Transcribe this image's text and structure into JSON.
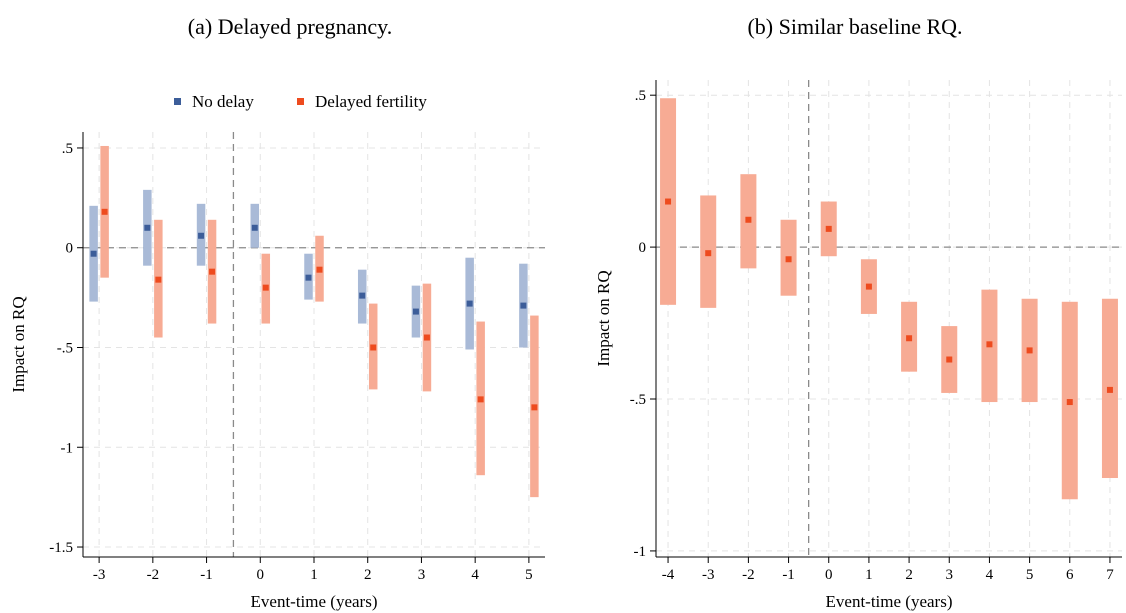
{
  "chart_data": [
    {
      "type": "errorbar",
      "title": "(a) Delayed pregnancy.",
      "xlabel": "Event-time (years)",
      "ylabel": "Impact on RQ",
      "ylim": [
        -1.55,
        0.58
      ],
      "xlim": [
        -3.3,
        5.3
      ],
      "yticks": [
        0.5,
        0,
        -0.5,
        -1,
        -1.5
      ],
      "yticklabels": [
        ".5",
        "0",
        "-.5",
        "-1",
        "-1.5"
      ],
      "xticks": [
        -3,
        -2,
        -1,
        0,
        1,
        2,
        3,
        4,
        5
      ],
      "xticklabels": [
        "-3",
        "-2",
        "-1",
        "0",
        "1",
        "2",
        "3",
        "4",
        "5"
      ],
      "reference_lines": {
        "y": 0,
        "x": -0.5
      },
      "grid": true,
      "legend": "top-center",
      "series": [
        {
          "name": "No delay",
          "color": "#3c5d99",
          "band_color": "#a9bad7",
          "x": [
            -3,
            -2,
            -1,
            0,
            1,
            2,
            3,
            4,
            5
          ],
          "values": [
            -0.03,
            0.1,
            0.06,
            0.1,
            -0.15,
            -0.24,
            -0.32,
            -0.28,
            -0.29
          ],
          "ci_low": [
            -0.27,
            -0.09,
            -0.09,
            0.0,
            -0.26,
            -0.38,
            -0.45,
            -0.51,
            -0.5
          ],
          "ci_high": [
            0.21,
            0.29,
            0.22,
            0.22,
            -0.03,
            -0.11,
            -0.19,
            -0.05,
            -0.08
          ]
        },
        {
          "name": "Delayed fertility",
          "color": "#ee4b1e",
          "band_color": "#f7ab94",
          "x": [
            -3,
            -2,
            -1,
            0,
            1,
            2,
            3,
            4,
            5
          ],
          "values": [
            0.18,
            -0.16,
            -0.12,
            -0.2,
            -0.11,
            -0.5,
            -0.45,
            -0.76,
            -0.8
          ],
          "ci_low": [
            -0.15,
            -0.45,
            -0.38,
            -0.38,
            -0.27,
            -0.71,
            -0.72,
            -1.14,
            -1.25
          ],
          "ci_high": [
            0.51,
            0.14,
            0.14,
            -0.03,
            0.06,
            -0.28,
            -0.18,
            -0.37,
            -0.34
          ]
        }
      ]
    },
    {
      "type": "errorbar",
      "title": "(b) Similar baseline RQ.",
      "xlabel": "Event-time (years)",
      "ylabel": "Impact on RQ",
      "ylim": [
        -1.02,
        0.55
      ],
      "xlim": [
        -4.3,
        7.3
      ],
      "yticks": [
        0.5,
        0,
        -0.5,
        -1
      ],
      "yticklabels": [
        ".5",
        "0",
        "-.5",
        "-1"
      ],
      "xticks": [
        -4,
        -3,
        -2,
        -1,
        0,
        1,
        2,
        3,
        4,
        5,
        6,
        7
      ],
      "xticklabels": [
        "-4",
        "-3",
        "-2",
        "-1",
        "0",
        "1",
        "2",
        "3",
        "4",
        "5",
        "6",
        "7"
      ],
      "reference_lines": {
        "y": 0,
        "x": -0.5
      },
      "grid": true,
      "series": [
        {
          "color": "#ee4b1e",
          "band_color": "#f7ab94",
          "x": [
            -4,
            -3,
            -2,
            -1,
            0,
            1,
            2,
            3,
            4,
            5,
            6,
            7
          ],
          "values": [
            0.15,
            -0.02,
            0.09,
            -0.04,
            0.06,
            -0.13,
            -0.3,
            -0.37,
            -0.32,
            -0.34,
            -0.51,
            -0.47
          ],
          "ci_low": [
            -0.19,
            -0.2,
            -0.07,
            -0.16,
            -0.03,
            -0.22,
            -0.41,
            -0.48,
            -0.51,
            -0.51,
            -0.83,
            -0.76
          ],
          "ci_high": [
            0.49,
            0.17,
            0.24,
            0.09,
            0.15,
            -0.04,
            -0.18,
            -0.26,
            -0.14,
            -0.17,
            -0.18,
            -0.17
          ]
        }
      ]
    }
  ]
}
